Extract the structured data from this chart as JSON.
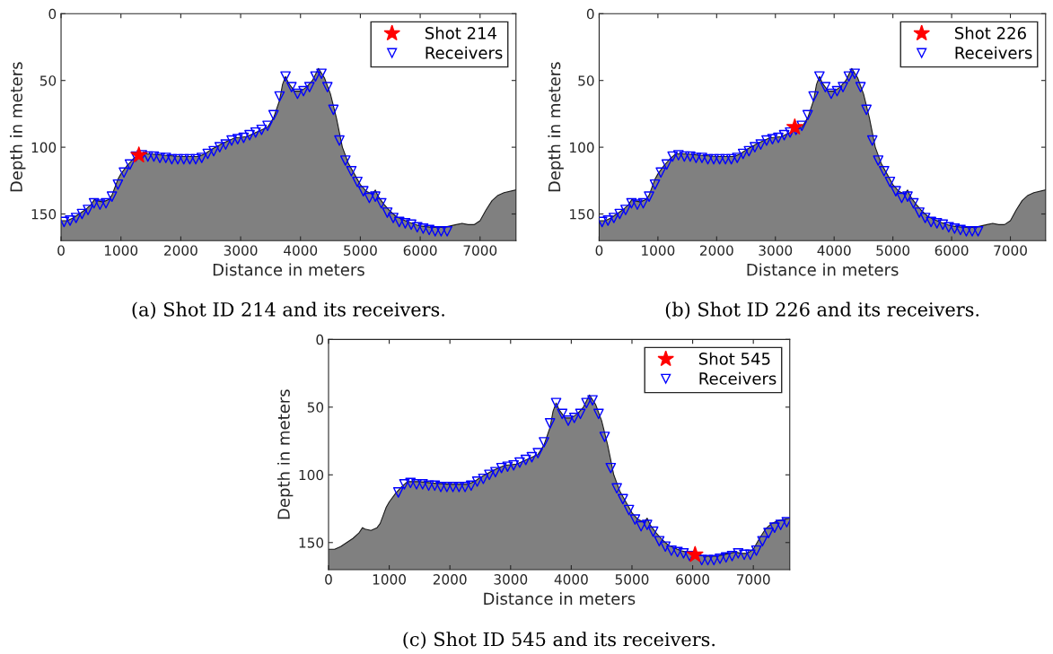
{
  "chart_data": [
    {
      "type": "line",
      "xlabel": "Distance in meters",
      "ylabel": "Depth in meters",
      "xlim": [
        0,
        7600
      ],
      "ylim": [
        170,
        0
      ],
      "xticks": [
        0,
        1000,
        2000,
        3000,
        4000,
        5000,
        6000,
        7000
      ],
      "yticks": [
        0,
        50,
        100,
        150
      ],
      "legend": "top right",
      "grid": false,
      "marker": "none",
      "annotations": [
        "(a) Shot ID 214 and its receivers."
      ],
      "series": [
        {
          "color": "#1a1a1a",
          "x": [
            0,
            100,
            200,
            300,
            400,
            500,
            560,
            600,
            700,
            800,
            850,
            900,
            950,
            1000,
            1100,
            1200,
            1300,
            1400,
            1500,
            1700,
            2000,
            2300,
            2400,
            2500,
            2700,
            2900,
            3100,
            3300,
            3450,
            3550,
            3650,
            3700,
            3750,
            3800,
            3900,
            4000,
            4100,
            4200,
            4300,
            4400,
            4500,
            4600,
            4700,
            4800,
            4900,
            5000,
            5100,
            5200,
            5250,
            5300,
            5400,
            5500,
            5600,
            5800,
            6000,
            6200,
            6400,
            6500,
            6600,
            6700,
            6800,
            6900,
            7000,
            7100,
            7200,
            7300,
            7400,
            7600
          ],
          "values": [
            155,
            155,
            153,
            150,
            147,
            143,
            139,
            140,
            141,
            139,
            136,
            130,
            124,
            120,
            114,
            109,
            105,
            105,
            105,
            106,
            107,
            107,
            105,
            102,
            97,
            93,
            92,
            88,
            85,
            78,
            65,
            53,
            47,
            52,
            58,
            58,
            55,
            50,
            41,
            48,
            60,
            78,
            100,
            112,
            120,
            128,
            133,
            135,
            132,
            137,
            143,
            148,
            152,
            156,
            159,
            160,
            160,
            159,
            158,
            157,
            158,
            158,
            155,
            147,
            140,
            136,
            134,
            132
          ],
          "lower": [
            155,
            155,
            153,
            150,
            147,
            143,
            139,
            140,
            141,
            139,
            136,
            130,
            124,
            120,
            114,
            109,
            105,
            105,
            105,
            106,
            107,
            107,
            105,
            102,
            97,
            93,
            92,
            88,
            85,
            78,
            65,
            53,
            47,
            52,
            58,
            58,
            55,
            50,
            41,
            48,
            60,
            78,
            100,
            112,
            120,
            128,
            133,
            135,
            132,
            137,
            143,
            148,
            152,
            156,
            159,
            160,
            160,
            159,
            158,
            157,
            158,
            158,
            155,
            147,
            140,
            136,
            134,
            132
          ],
          "upper": [
            170,
            170,
            170,
            170,
            170,
            170,
            170,
            170,
            170,
            170,
            170,
            170,
            170,
            170,
            170,
            170,
            170,
            170,
            170,
            170,
            170,
            170,
            170,
            170,
            170,
            170,
            170,
            170,
            170,
            170,
            170,
            170,
            170,
            170,
            170,
            170,
            170,
            170,
            170,
            170,
            170,
            170,
            170,
            170,
            170,
            170,
            170,
            170,
            170,
            170,
            170,
            170,
            170,
            170,
            170,
            170,
            170,
            170,
            170,
            170,
            170,
            170,
            170,
            170,
            170,
            170,
            170,
            170
          ]
        },
        {
          "type": "scatter",
          "name": "Shot 214",
          "color": "#ff0000",
          "marker": "star",
          "x": [
            1300
          ],
          "values": [
            106
          ]
        },
        {
          "type": "scatter",
          "name": "Receivers",
          "color": "#0000ff",
          "marker": "triangle",
          "x": [
            50,
            150,
            250,
            350,
            450,
            550,
            650,
            750,
            850,
            950,
            1050,
            1150,
            1250,
            1350,
            1450,
            1550,
            1650,
            1750,
            1850,
            1950,
            2050,
            2150,
            2250,
            2350,
            2450,
            2550,
            2650,
            2750,
            2850,
            2950,
            3050,
            3150,
            3250,
            3350,
            3450,
            3550,
            3650,
            3750,
            3850,
            3950,
            4050,
            4150,
            4250,
            4350,
            4450,
            4550,
            4650,
            4750,
            4850,
            4950,
            5050,
            5150,
            5250,
            5350,
            5450,
            5550,
            5650,
            5750,
            5850,
            5950,
            6050,
            6150,
            6250,
            6350,
            6450
          ],
          "values": [
            156,
            155,
            153,
            150,
            147,
            142,
            143,
            142,
            137,
            128,
            119,
            113,
            107,
            106,
            107,
            107,
            108,
            108,
            109,
            109,
            109,
            109,
            109,
            108,
            105,
            103,
            100,
            98,
            95,
            94,
            93,
            91,
            89,
            87,
            84,
            76,
            62,
            47,
            55,
            60,
            58,
            55,
            47,
            45,
            55,
            72,
            95,
            110,
            118,
            126,
            133,
            138,
            137,
            142,
            149,
            153,
            156,
            157,
            158,
            160,
            161,
            162,
            163,
            163,
            163
          ]
        }
      ]
    },
    {
      "type": "line",
      "xlabel": "Distance in meters",
      "ylabel": "Depth in meters",
      "xlim": [
        0,
        7600
      ],
      "ylim": [
        170,
        0
      ],
      "xticks": [
        0,
        1000,
        2000,
        3000,
        4000,
        5000,
        6000,
        7000
      ],
      "yticks": [
        0,
        50,
        100,
        150
      ],
      "legend": "top right",
      "grid": false,
      "marker": "none",
      "annotations": [
        "(b) Shot ID 226 and its receivers."
      ],
      "series": [
        {
          "color": "#1a1a1a",
          "x": [
            0,
            100,
            200,
            300,
            400,
            500,
            560,
            600,
            700,
            800,
            850,
            900,
            950,
            1000,
            1100,
            1200,
            1300,
            1400,
            1500,
            1700,
            2000,
            2300,
            2400,
            2500,
            2700,
            2900,
            3100,
            3300,
            3450,
            3550,
            3650,
            3700,
            3750,
            3800,
            3900,
            4000,
            4100,
            4200,
            4300,
            4400,
            4500,
            4600,
            4700,
            4800,
            4900,
            5000,
            5100,
            5200,
            5250,
            5300,
            5400,
            5500,
            5600,
            5800,
            6000,
            6200,
            6400,
            6500,
            6600,
            6700,
            6800,
            6900,
            7000,
            7100,
            7200,
            7300,
            7400,
            7600
          ],
          "values": [
            155,
            155,
            153,
            150,
            147,
            143,
            139,
            140,
            141,
            139,
            136,
            130,
            124,
            120,
            114,
            109,
            105,
            105,
            105,
            106,
            107,
            107,
            105,
            102,
            97,
            93,
            92,
            88,
            85,
            78,
            65,
            53,
            47,
            52,
            58,
            58,
            55,
            50,
            41,
            48,
            60,
            78,
            100,
            112,
            120,
            128,
            133,
            135,
            132,
            137,
            143,
            148,
            152,
            156,
            159,
            160,
            160,
            159,
            158,
            157,
            158,
            158,
            155,
            147,
            140,
            136,
            134,
            132
          ],
          "lower": [
            155,
            155,
            153,
            150,
            147,
            143,
            139,
            140,
            141,
            139,
            136,
            130,
            124,
            120,
            114,
            109,
            105,
            105,
            105,
            106,
            107,
            107,
            105,
            102,
            97,
            93,
            92,
            88,
            85,
            78,
            65,
            53,
            47,
            52,
            58,
            58,
            55,
            50,
            41,
            48,
            60,
            78,
            100,
            112,
            120,
            128,
            133,
            135,
            132,
            137,
            143,
            148,
            152,
            156,
            159,
            160,
            160,
            159,
            158,
            157,
            158,
            158,
            155,
            147,
            140,
            136,
            134,
            132
          ],
          "upper": [
            170,
            170,
            170,
            170,
            170,
            170,
            170,
            170,
            170,
            170,
            170,
            170,
            170,
            170,
            170,
            170,
            170,
            170,
            170,
            170,
            170,
            170,
            170,
            170,
            170,
            170,
            170,
            170,
            170,
            170,
            170,
            170,
            170,
            170,
            170,
            170,
            170,
            170,
            170,
            170,
            170,
            170,
            170,
            170,
            170,
            170,
            170,
            170,
            170,
            170,
            170,
            170,
            170,
            170,
            170,
            170,
            170,
            170,
            170,
            170,
            170,
            170,
            170,
            170,
            170,
            170,
            170,
            170
          ]
        },
        {
          "type": "scatter",
          "name": "Shot 226",
          "color": "#ff0000",
          "marker": "star",
          "x": [
            3330
          ],
          "values": [
            85
          ]
        },
        {
          "type": "scatter",
          "name": "Receivers",
          "color": "#0000ff",
          "marker": "triangle",
          "x": [
            50,
            150,
            250,
            350,
            450,
            550,
            650,
            750,
            850,
            950,
            1050,
            1150,
            1250,
            1350,
            1450,
            1550,
            1650,
            1750,
            1850,
            1950,
            2050,
            2150,
            2250,
            2350,
            2450,
            2550,
            2650,
            2750,
            2850,
            2950,
            3050,
            3150,
            3250,
            3350,
            3450,
            3550,
            3650,
            3750,
            3850,
            3950,
            4050,
            4150,
            4250,
            4350,
            4450,
            4550,
            4650,
            4750,
            4850,
            4950,
            5050,
            5150,
            5250,
            5350,
            5450,
            5550,
            5650,
            5750,
            5850,
            5950,
            6050,
            6150,
            6250,
            6350,
            6450
          ],
          "values": [
            156,
            155,
            153,
            150,
            147,
            142,
            143,
            142,
            137,
            128,
            119,
            113,
            107,
            106,
            107,
            107,
            108,
            108,
            109,
            109,
            109,
            109,
            109,
            108,
            105,
            103,
            100,
            98,
            95,
            94,
            93,
            91,
            89,
            87,
            84,
            76,
            62,
            47,
            55,
            60,
            58,
            55,
            47,
            45,
            55,
            72,
            95,
            110,
            118,
            126,
            133,
            138,
            137,
            142,
            149,
            153,
            156,
            157,
            158,
            160,
            161,
            162,
            163,
            163,
            163
          ]
        }
      ]
    },
    {
      "type": "line",
      "xlabel": "Distance in meters",
      "ylabel": "Depth in meters",
      "xlim": [
        0,
        7600
      ],
      "ylim": [
        170,
        0
      ],
      "xticks": [
        0,
        1000,
        2000,
        3000,
        4000,
        5000,
        6000,
        7000
      ],
      "yticks": [
        0,
        50,
        100,
        150
      ],
      "legend": "top right",
      "grid": false,
      "marker": "none",
      "annotations": [
        "(c) Shot ID 545 and its receivers."
      ],
      "series": [
        {
          "color": "#1a1a1a",
          "x": [
            0,
            100,
            200,
            300,
            400,
            500,
            560,
            600,
            700,
            800,
            850,
            900,
            950,
            1000,
            1100,
            1200,
            1300,
            1400,
            1500,
            1700,
            2000,
            2300,
            2400,
            2500,
            2700,
            2900,
            3100,
            3300,
            3450,
            3550,
            3650,
            3700,
            3750,
            3800,
            3900,
            4000,
            4100,
            4200,
            4300,
            4400,
            4500,
            4600,
            4700,
            4800,
            4900,
            5000,
            5100,
            5200,
            5250,
            5300,
            5400,
            5500,
            5600,
            5800,
            6200,
            6400,
            6500,
            6600,
            6700,
            6800,
            6900,
            7000,
            7100,
            7200,
            7300,
            7400,
            7600
          ],
          "values": [
            155,
            155,
            153,
            150,
            147,
            143,
            139,
            140,
            141,
            139,
            136,
            130,
            124,
            120,
            114,
            109,
            105,
            105,
            105,
            106,
            107,
            107,
            105,
            102,
            97,
            93,
            92,
            88,
            85,
            78,
            65,
            53,
            47,
            52,
            58,
            58,
            55,
            50,
            41,
            48,
            60,
            78,
            100,
            112,
            120,
            128,
            133,
            135,
            132,
            137,
            143,
            148,
            152,
            156,
            160,
            160,
            159,
            158,
            157,
            158,
            158,
            155,
            147,
            140,
            136,
            134,
            132
          ],
          "lower": [
            155,
            155,
            153,
            150,
            147,
            143,
            139,
            140,
            141,
            139,
            136,
            130,
            124,
            120,
            114,
            109,
            105,
            105,
            105,
            106,
            107,
            107,
            105,
            102,
            97,
            93,
            92,
            88,
            85,
            78,
            65,
            53,
            47,
            52,
            58,
            58,
            55,
            50,
            41,
            48,
            60,
            78,
            100,
            112,
            120,
            128,
            133,
            135,
            132,
            137,
            143,
            148,
            152,
            156,
            160,
            160,
            159,
            158,
            157,
            158,
            158,
            155,
            147,
            140,
            136,
            134,
            132
          ],
          "upper": [
            170,
            170,
            170,
            170,
            170,
            170,
            170,
            170,
            170,
            170,
            170,
            170,
            170,
            170,
            170,
            170,
            170,
            170,
            170,
            170,
            170,
            170,
            170,
            170,
            170,
            170,
            170,
            170,
            170,
            170,
            170,
            170,
            170,
            170,
            170,
            170,
            170,
            170,
            170,
            170,
            170,
            170,
            170,
            170,
            170,
            170,
            170,
            170,
            170,
            170,
            170,
            170,
            170,
            170,
            170,
            170,
            170,
            170,
            170,
            170,
            170,
            170,
            170,
            170,
            170,
            170,
            170
          ]
        },
        {
          "type": "scatter",
          "name": "Shot 545",
          "color": "#ff0000",
          "marker": "star",
          "x": [
            6040
          ],
          "values": [
            159
          ]
        },
        {
          "type": "scatter",
          "name": "Receivers",
          "color": "#0000ff",
          "marker": "triangle",
          "x": [
            1150,
            1250,
            1350,
            1450,
            1550,
            1650,
            1750,
            1850,
            1950,
            2050,
            2150,
            2250,
            2350,
            2450,
            2550,
            2650,
            2750,
            2850,
            2950,
            3050,
            3150,
            3250,
            3350,
            3450,
            3550,
            3650,
            3750,
            3850,
            3950,
            4050,
            4150,
            4250,
            4350,
            4450,
            4550,
            4650,
            4750,
            4850,
            4950,
            5050,
            5150,
            5250,
            5350,
            5450,
            5550,
            5650,
            5750,
            5850,
            5950,
            6150,
            6250,
            6350,
            6450,
            6550,
            6650,
            6750,
            6850,
            6950,
            7050,
            7150,
            7250,
            7350,
            7450,
            7550
          ],
          "values": [
            113,
            107,
            106,
            107,
            107,
            108,
            108,
            109,
            109,
            109,
            109,
            109,
            108,
            105,
            103,
            100,
            98,
            95,
            94,
            93,
            91,
            89,
            87,
            84,
            76,
            62,
            47,
            55,
            60,
            58,
            55,
            47,
            45,
            55,
            72,
            95,
            110,
            118,
            126,
            133,
            138,
            137,
            142,
            149,
            153,
            156,
            157,
            158,
            160,
            163,
            163,
            163,
            162,
            161,
            160,
            158,
            159,
            159,
            156,
            149,
            143,
            139,
            137,
            135
          ]
        }
      ]
    }
  ]
}
